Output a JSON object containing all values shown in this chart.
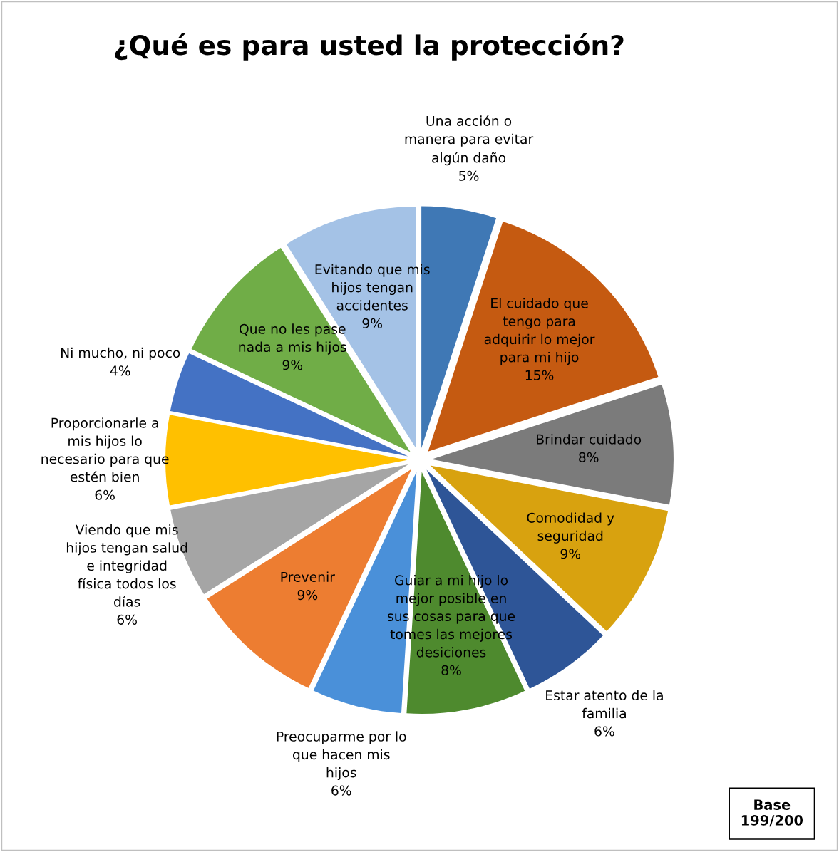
{
  "chart_data": {
    "type": "pie",
    "title": "¿Qué es para usted la protección?",
    "categories": [
      "Una acción o manera para evitar algún daño",
      "El cuidado que tengo para adquirir lo mejor para mi hijo",
      "Brindar cuidado",
      "Comodidad y seguridad",
      "Estar atento de la familia",
      "Guiar a mi hijo lo mejor posible en sus cosas para que tomes las mejores desiciones",
      "Preocuparme por lo que hacen mis hijos",
      "Prevenir",
      "Viendo que mis hijos tengan salud e integridad física todos los días",
      "Proporcionarle a mis hijos lo necesario para que estén bien",
      "Ni mucho, ni poco",
      "Que no les pase nada a mis hijos",
      "Evitando que mis hijos tengan accidentes"
    ],
    "values": [
      5,
      15,
      8,
      9,
      6,
      8,
      6,
      9,
      6,
      6,
      4,
      9,
      9
    ],
    "value_labels": [
      "5%",
      "15%",
      "8%",
      "9%",
      "6%",
      "8%",
      "6%",
      "9%",
      "6%",
      "6%",
      "4%",
      "9%",
      "9%"
    ],
    "colors": [
      "#3f78b5",
      "#c55a11",
      "#7b7b7b",
      "#d8a20f",
      "#2e5597",
      "#4e8a2e",
      "#4a90d9",
      "#ed7d31",
      "#a5a5a5",
      "#ffc000",
      "#4472c4",
      "#70ad47",
      "#a4c2e6"
    ],
    "legend": false,
    "annotations": [
      "Base\n199/200"
    ]
  }
}
